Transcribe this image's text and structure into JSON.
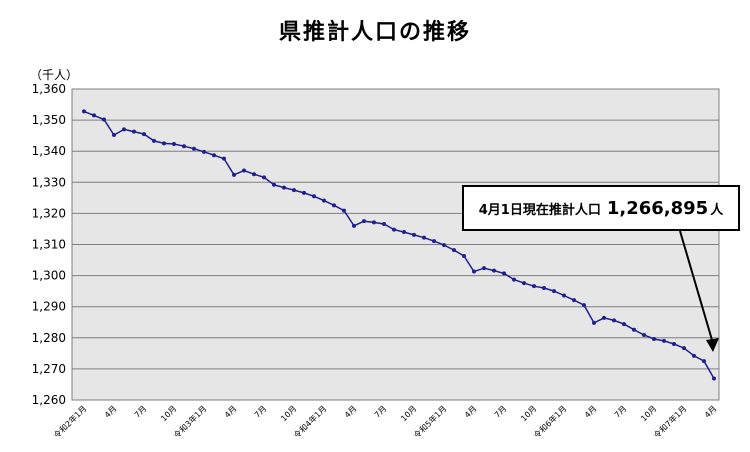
{
  "title": "県推計人口の推移",
  "unit_label": "（千人）",
  "callout": {
    "prefix": "4月1日現在推計人口",
    "value": "1,266,895",
    "suffix": "人"
  },
  "colors": {
    "line": "#1f1f8f",
    "plot_bg": "#e6e6e6",
    "grid": "#7f7f7f"
  },
  "chart_data": {
    "type": "line",
    "title": "県推計人口の推移",
    "ylabel": "（千人）",
    "ylim": [
      1260,
      1360
    ],
    "yticks": [
      1260,
      1270,
      1280,
      1290,
      1300,
      1310,
      1320,
      1330,
      1340,
      1350,
      1360
    ],
    "ytick_labels": [
      "1,260",
      "1,270",
      "1,280",
      "1,290",
      "1,300",
      "1,310",
      "1,320",
      "1,330",
      "1,340",
      "1,350",
      "1,360"
    ],
    "grid": true,
    "x": [
      "令和2年1月",
      "2月",
      "3月",
      "4月",
      "5月",
      "6月",
      "7月",
      "8月",
      "9月",
      "10月",
      "11月",
      "12月",
      "令和3年1月",
      "2月",
      "3月",
      "4月",
      "5月",
      "6月",
      "7月",
      "8月",
      "9月",
      "10月",
      "11月",
      "12月",
      "令和4年1月",
      "2月",
      "3月",
      "4月",
      "5月",
      "6月",
      "7月",
      "8月",
      "9月",
      "10月",
      "11月",
      "12月",
      "令和5年1月",
      "2月",
      "3月",
      "4月",
      "5月",
      "6月",
      "7月",
      "8月",
      "9月",
      "10月",
      "11月",
      "12月",
      "令和6年1月",
      "2月",
      "3月",
      "4月",
      "5月",
      "6月",
      "7月",
      "8月",
      "9月",
      "10月",
      "11月",
      "12月",
      "令和7年1月",
      "2月",
      "3月",
      "4月"
    ],
    "xtick_labels": [
      {
        "i": 0,
        "label": "令和2年1月"
      },
      {
        "i": 3,
        "label": "4月"
      },
      {
        "i": 6,
        "label": "7月"
      },
      {
        "i": 9,
        "label": "10月"
      },
      {
        "i": 12,
        "label": "令和3年1月"
      },
      {
        "i": 15,
        "label": "4月"
      },
      {
        "i": 18,
        "label": "7月"
      },
      {
        "i": 21,
        "label": "10月"
      },
      {
        "i": 24,
        "label": "令和4年1月"
      },
      {
        "i": 27,
        "label": "4月"
      },
      {
        "i": 30,
        "label": "7月"
      },
      {
        "i": 33,
        "label": "10月"
      },
      {
        "i": 36,
        "label": "令和5年1月"
      },
      {
        "i": 39,
        "label": "4月"
      },
      {
        "i": 42,
        "label": "7月"
      },
      {
        "i": 45,
        "label": "10月"
      },
      {
        "i": 48,
        "label": "令和6年1月"
      },
      {
        "i": 51,
        "label": "4月"
      },
      {
        "i": 54,
        "label": "7月"
      },
      {
        "i": 57,
        "label": "10月"
      },
      {
        "i": 60,
        "label": "令和7年1月"
      },
      {
        "i": 63,
        "label": "4月"
      }
    ],
    "series": [
      {
        "values": [
          1352.8,
          1351.5,
          1350.2,
          1345.2,
          1347.0,
          1346.3,
          1345.5,
          1343.3,
          1342.5,
          1342.3,
          1341.6,
          1340.8,
          1339.8,
          1338.7,
          1337.6,
          1332.4,
          1333.8,
          1332.6,
          1331.6,
          1329.2,
          1328.3,
          1327.5,
          1326.6,
          1325.5,
          1324.1,
          1322.6,
          1320.9,
          1316.0,
          1317.5,
          1317.1,
          1316.6,
          1314.8,
          1314.0,
          1313.1,
          1312.2,
          1311.1,
          1309.8,
          1308.2,
          1306.3,
          1301.3,
          1302.4,
          1301.6,
          1300.7,
          1298.7,
          1297.6,
          1296.6,
          1296.0,
          1295.0,
          1293.6,
          1292.1,
          1290.5,
          1284.8,
          1286.4,
          1285.6,
          1284.4,
          1282.6,
          1280.9,
          1279.6,
          1279.0,
          1278.0,
          1276.7,
          1274.2,
          1272.5,
          1266.9
        ]
      }
    ]
  }
}
